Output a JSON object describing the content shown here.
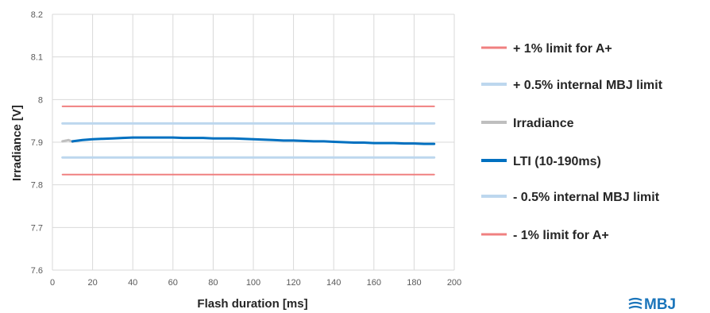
{
  "chart_data": {
    "type": "line",
    "title": "",
    "xlabel": "Flash duration [ms]",
    "ylabel": "Irradiance [V]",
    "xlim": [
      0,
      200
    ],
    "ylim": [
      7.6,
      8.2
    ],
    "x_ticks": [
      0,
      20,
      40,
      60,
      80,
      100,
      120,
      140,
      160,
      180,
      200
    ],
    "y_ticks": [
      "7.6",
      "7.7",
      "7.8",
      "7.9",
      "8",
      "8.1",
      "8.2"
    ],
    "grid": true,
    "legend_position": "right",
    "series": [
      {
        "name": "+ 1% limit for A+",
        "color": "#f08080",
        "width": 2,
        "x": [
          5,
          190
        ],
        "values": [
          7.984,
          7.984
        ]
      },
      {
        "name": "+ 0.5% internal MBJ limit",
        "color": "#bdd7ee",
        "width": 3,
        "x": [
          5,
          190
        ],
        "values": [
          7.944,
          7.944
        ]
      },
      {
        "name": "Irradiance",
        "color": "#bfbfbf",
        "width": 3,
        "x": [
          5,
          8,
          10
        ],
        "values": [
          7.902,
          7.905,
          7.901
        ]
      },
      {
        "name": "LTI (10-190ms)",
        "color": "#0070c0",
        "width": 3,
        "x": [
          10,
          15,
          20,
          25,
          30,
          35,
          40,
          45,
          50,
          55,
          60,
          65,
          70,
          75,
          80,
          85,
          90,
          95,
          100,
          105,
          110,
          115,
          120,
          125,
          130,
          135,
          140,
          145,
          150,
          155,
          160,
          165,
          170,
          175,
          180,
          185,
          190
        ],
        "values": [
          7.902,
          7.905,
          7.907,
          7.908,
          7.909,
          7.91,
          7.911,
          7.911,
          7.911,
          7.911,
          7.911,
          7.91,
          7.91,
          7.91,
          7.909,
          7.909,
          7.909,
          7.908,
          7.907,
          7.906,
          7.905,
          7.904,
          7.904,
          7.903,
          7.902,
          7.902,
          7.901,
          7.9,
          7.899,
          7.899,
          7.898,
          7.898,
          7.898,
          7.897,
          7.897,
          7.896,
          7.896
        ]
      },
      {
        "name": "- 0.5% internal MBJ limit",
        "color": "#bdd7ee",
        "width": 3,
        "x": [
          5,
          190
        ],
        "values": [
          7.864,
          7.864
        ]
      },
      {
        "name": "- 1% limit for A+",
        "color": "#f08080",
        "width": 2,
        "x": [
          5,
          190
        ],
        "values": [
          7.824,
          7.824
        ]
      }
    ]
  },
  "logo": {
    "text": "MBJ"
  }
}
